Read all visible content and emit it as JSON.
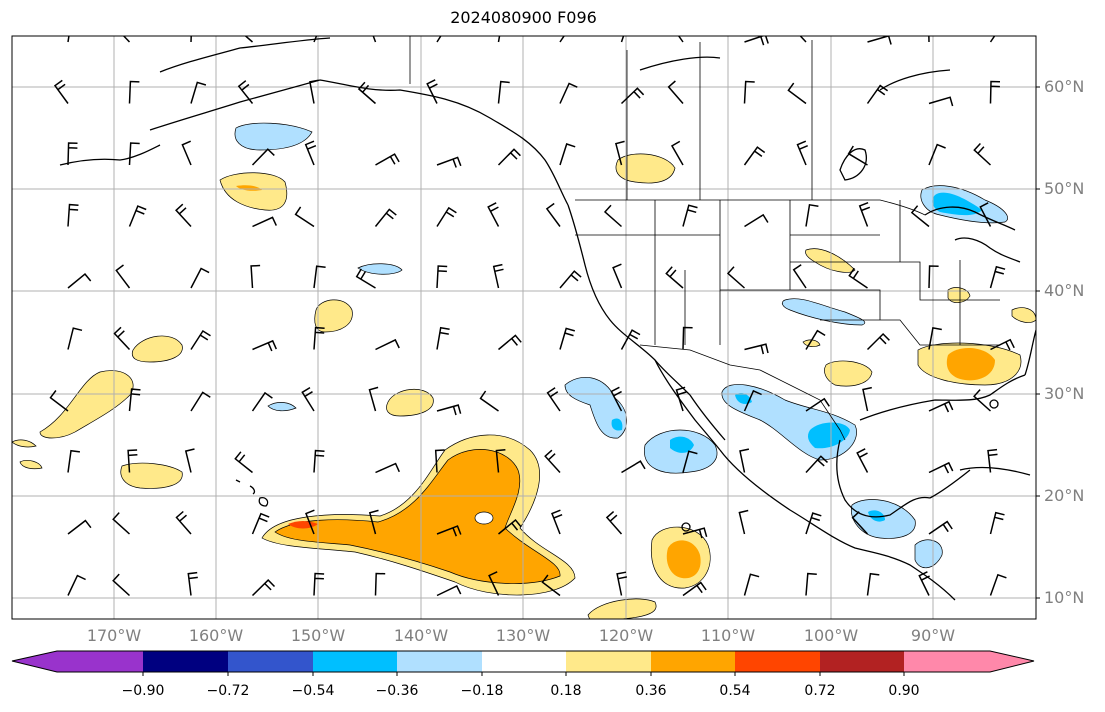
{
  "title": "2024080900 F096",
  "lat_labels": [
    "60°N",
    "50°N",
    "40°N",
    "30°N",
    "20°N",
    "10°N"
  ],
  "lon_labels": [
    "170°W",
    "160°W",
    "150°W",
    "140°W",
    "130°W",
    "120°W",
    "110°W",
    "100°W",
    "90°W"
  ],
  "colorbar": {
    "ticks": [
      "−0.90",
      "−0.72",
      "−0.54",
      "−0.36",
      "−0.18",
      "0.18",
      "0.36",
      "0.54",
      "0.72",
      "0.90"
    ],
    "colors": [
      "#9933cc",
      "#000080",
      "#3355cc",
      "#00bfff",
      "#b0e0ff",
      "#ffffff",
      "#ffe98a",
      "#ffa500",
      "#ff4500",
      "#b22222",
      "#ff88aa"
    ]
  },
  "map_extent": {
    "lon": [
      -180,
      -80
    ],
    "lat": [
      8,
      65
    ]
  }
}
